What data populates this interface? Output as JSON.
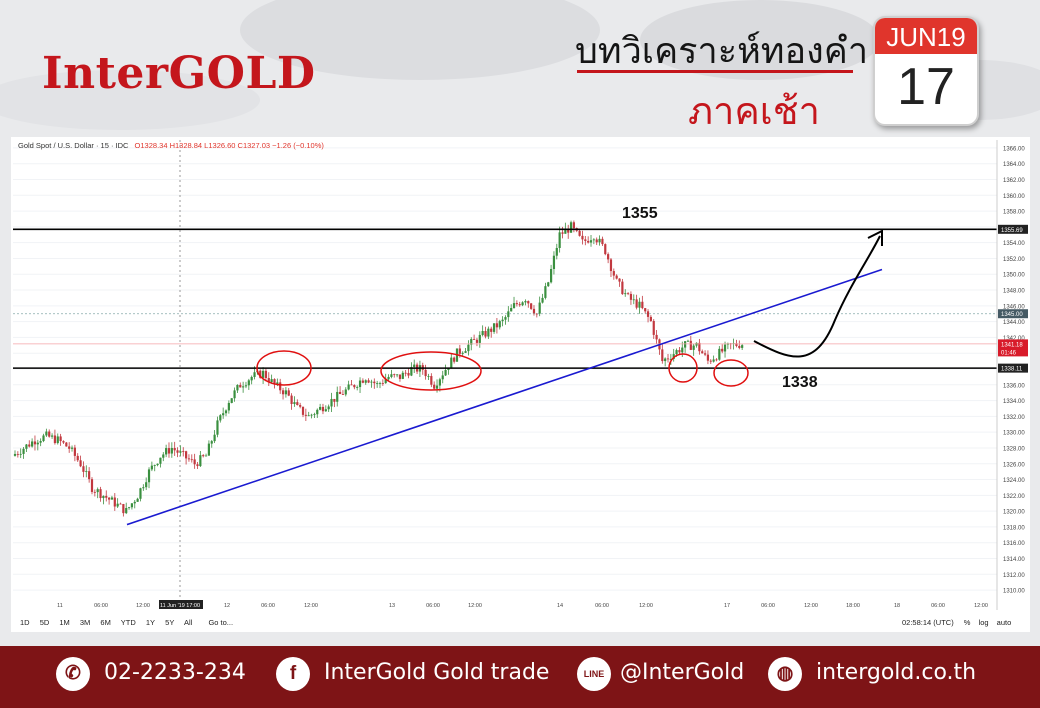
{
  "brand": {
    "logo": "InterGOLD"
  },
  "header": {
    "title": "บทวิเคราะห์ทองคำ",
    "subtitle": "ภาคเช้า"
  },
  "calendar": {
    "month": "JUN19",
    "day": "17"
  },
  "chart_header": {
    "symbol": "Gold Spot / U.S. Dollar · 15 · IDC",
    "ohlc": "O1328.34  H1328.84  L1326.60  C1327.03  −1.26 (−0.10%)"
  },
  "toolbar": {
    "ranges": [
      "1D",
      "5D",
      "1M",
      "3M",
      "6M",
      "YTD",
      "1Y",
      "5Y",
      "All"
    ],
    "goto": "Go to...",
    "time": "02:58:14 (UTC)",
    "pct": "%",
    "log": "log",
    "auto": "auto"
  },
  "chart_data": {
    "type": "line",
    "title": "",
    "x_tick_labels": [
      "11",
      "06:00",
      "12:00",
      "11 Jun '19  17:00",
      "12",
      "06:00",
      "12:00",
      "13",
      "06:00",
      "12:00",
      "14",
      "06:00",
      "12:00",
      "17",
      "06:00",
      "12:00",
      "18:00",
      "18",
      "06:00",
      "12:00"
    ],
    "y_tick_labels": [
      "1310.00",
      "1312.00",
      "1314.00",
      "1316.00",
      "1318.00",
      "1320.00",
      "1322.00",
      "1324.00",
      "1326.00",
      "1328.00",
      "1330.00",
      "1332.00",
      "1334.00",
      "1336.00",
      "1338.00",
      "1340.00",
      "1342.00",
      "1344.00",
      "1346.00",
      "1348.00",
      "1350.00",
      "1352.00",
      "1354.00",
      "1356.00",
      "1358.00",
      "1360.00",
      "1362.00",
      "1364.00",
      "1366.00"
    ],
    "ylim": [
      1309,
      1367
    ],
    "series": [
      {
        "values": [
          1327,
          1328,
          1329,
          1329.5,
          1329,
          1328,
          1326,
          1323,
          1322,
          1321,
          1320,
          1322,
          1325,
          1327,
          1328,
          1327,
          1326,
          1327,
          1331,
          1334,
          1336,
          1337,
          1337.5,
          1336,
          1335,
          1333,
          1332,
          1333,
          1334,
          1335,
          1336,
          1337,
          1336,
          1337,
          1337,
          1338,
          1338,
          1336,
          1338,
          1340,
          1341,
          1342,
          1343,
          1344,
          1346,
          1347,
          1345,
          1349,
          1355,
          1356,
          1354,
          1355,
          1353,
          1349,
          1347,
          1346,
          1344,
          1339,
          1340,
          1341,
          1341,
          1339,
          1340,
          1341,
          1341.2
        ]
      }
    ],
    "price_tags": [
      "1355.69",
      "1345.00",
      "1341.18",
      "01:46",
      "1338.11"
    ],
    "annotations": [
      "1355",
      "1338"
    ]
  },
  "footer": {
    "phone": "02-2233-234",
    "facebook": "InterGold Gold trade",
    "line": "@InterGold",
    "web": "intergold.co.th",
    "line_badge": "LINE"
  }
}
